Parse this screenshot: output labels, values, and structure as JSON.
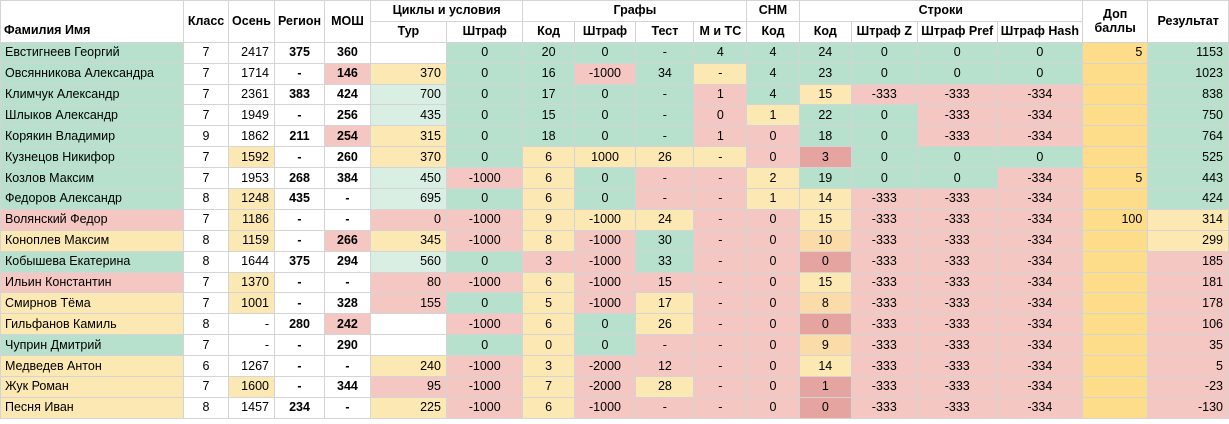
{
  "headers": {
    "name": "Фамилия Имя",
    "class": "Класс",
    "autumn": "Осень",
    "region": "Регион",
    "mosh": "МОШ",
    "group_cycles": "Циклы и условия",
    "group_graphs": "Графы",
    "group_snm": "СНМ",
    "group_strings": "Строки",
    "dop": "Доп баллы",
    "result": "Результат",
    "sub": {
      "cycles_tour": "Тур",
      "cycles_penalty": "Штраф",
      "graphs_code": "Код",
      "graphs_penalty": "Штраф",
      "graphs_test": "Тест",
      "graphs_mts": "М и ТС",
      "snm_code": "Код",
      "strings_code": "Код",
      "strings_pen_z": "Штраф Z",
      "strings_pen_pref": "Штраф Pref",
      "strings_pen_hash": "Штраф Hash"
    }
  },
  "rows": [
    [
      "Евстигнеев Георгий",
      "7",
      "2417",
      "375",
      "360",
      "",
      "0",
      "20",
      "0",
      "-",
      "4",
      "4",
      "24",
      "0",
      "0",
      "0",
      "5",
      "1153"
    ],
    [
      "Овсянникова Александра",
      "7",
      "1714",
      "-",
      "146",
      "370",
      "0",
      "16",
      "-1000",
      "34",
      "-",
      "4",
      "23",
      "0",
      "0",
      "0",
      "",
      "1023"
    ],
    [
      "Климчук Александр",
      "7",
      "2361",
      "383",
      "424",
      "700",
      "0",
      "17",
      "0",
      "-",
      "1",
      "4",
      "15",
      "-333",
      "-333",
      "-334",
      "",
      "838"
    ],
    [
      "Шлыков Александр",
      "7",
      "1949",
      "-",
      "256",
      "435",
      "0",
      "15",
      "0",
      "-",
      "0",
      "1",
      "22",
      "0",
      "-333",
      "-334",
      "",
      "750"
    ],
    [
      "Корякин Владимир",
      "9",
      "1862",
      "211",
      "254",
      "315",
      "0",
      "18",
      "0",
      "-",
      "1",
      "0",
      "18",
      "0",
      "-333",
      "-334",
      "",
      "764"
    ],
    [
      "Кузнецов Никифор",
      "7",
      "1592",
      "-",
      "260",
      "370",
      "0",
      "6",
      "1000",
      "26",
      "-",
      "0",
      "3",
      "0",
      "0",
      "0",
      "",
      "525"
    ],
    [
      "Козлов Максим",
      "7",
      "1953",
      "268",
      "384",
      "450",
      "-1000",
      "6",
      "0",
      "-",
      "-",
      "2",
      "19",
      "0",
      "0",
      "-334",
      "5",
      "443"
    ],
    [
      "Федоров Александр",
      "8",
      "1248",
      "435",
      "-",
      "695",
      "0",
      "6",
      "0",
      "-",
      "-",
      "1",
      "14",
      "-333",
      "-333",
      "-334",
      "",
      "424"
    ],
    [
      "Волянский Федор",
      "7",
      "1186",
      "-",
      "-",
      "0",
      "-1000",
      "9",
      "-1000",
      "24",
      "-",
      "0",
      "15",
      "-333",
      "-333",
      "-334",
      "100",
      "314"
    ],
    [
      "Коноплев Максим",
      "8",
      "1159",
      "-",
      "266",
      "345",
      "-1000",
      "8",
      "-1000",
      "30",
      "-",
      "0",
      "10",
      "-333",
      "-333",
      "-334",
      "",
      "299"
    ],
    [
      "Кобышева Екатерина",
      "8",
      "1644",
      "375",
      "294",
      "560",
      "0",
      "3",
      "-1000",
      "33",
      "-",
      "0",
      "0",
      "-333",
      "-333",
      "-334",
      "",
      "185"
    ],
    [
      "Ильин Константин",
      "7",
      "1370",
      "-",
      "-",
      "80",
      "-1000",
      "6",
      "-1000",
      "15",
      "-",
      "0",
      "15",
      "-333",
      "-333",
      "-334",
      "",
      "181"
    ],
    [
      "Смирнов Тёма",
      "7",
      "1001",
      "-",
      "328",
      "155",
      "0",
      "5",
      "-1000",
      "17",
      "-",
      "0",
      "8",
      "-333",
      "-333",
      "-334",
      "",
      "178"
    ],
    [
      "Гильфанов Камиль",
      "8",
      "-",
      "280",
      "242",
      "",
      "-1000",
      "6",
      "0",
      "26",
      "-",
      "0",
      "0",
      "-333",
      "-333",
      "-334",
      "",
      "106"
    ],
    [
      "Чуприн Дмитрий",
      "7",
      "-",
      "-",
      "290",
      "",
      "0",
      "0",
      "0",
      "-",
      "-",
      "0",
      "9",
      "-333",
      "-333",
      "-334",
      "",
      "35"
    ],
    [
      "Медведев Антон",
      "6",
      "1267",
      "-",
      "-",
      "240",
      "-1000",
      "3",
      "-2000",
      "12",
      "-",
      "0",
      "14",
      "-333",
      "-333",
      "-334",
      "",
      "5"
    ],
    [
      "Жук Роман",
      "7",
      "1600",
      "-",
      "344",
      "95",
      "-1000",
      "7",
      "-2000",
      "28",
      "-",
      "0",
      "1",
      "-333",
      "-333",
      "-334",
      "",
      "-23"
    ],
    [
      "Песня Иван",
      "8",
      "1457",
      "234",
      "-",
      "225",
      "-1000",
      "6",
      "-1000",
      "-",
      "-",
      "0",
      "0",
      "-333",
      "-333",
      "-334",
      "",
      "-130"
    ]
  ],
  "row_colors": [
    [
      "g",
      "w",
      "w",
      "w",
      "w",
      "w",
      "g",
      "g",
      "g",
      "g",
      "g",
      "g",
      "g",
      "g",
      "g",
      "g",
      "dop",
      "g"
    ],
    [
      "g",
      "w",
      "w",
      "w",
      "r",
      "y",
      "g",
      "g",
      "r",
      "g",
      "y",
      "g",
      "g",
      "g",
      "g",
      "g",
      "dop",
      "g"
    ],
    [
      "g",
      "w",
      "w",
      "w",
      "w",
      "lg",
      "g",
      "g",
      "g",
      "g",
      "r",
      "g",
      "y",
      "r",
      "r",
      "r",
      "dop",
      "g"
    ],
    [
      "g",
      "w",
      "w",
      "w",
      "w",
      "lg",
      "g",
      "g",
      "g",
      "g",
      "r",
      "y",
      "g",
      "g",
      "r",
      "r",
      "dop",
      "g"
    ],
    [
      "g",
      "w",
      "w",
      "w",
      "r",
      "y",
      "g",
      "g",
      "g",
      "g",
      "r",
      "r",
      "g",
      "g",
      "r",
      "r",
      "dop",
      "g"
    ],
    [
      "g",
      "w",
      "y",
      "w",
      "w",
      "y",
      "g",
      "y",
      "y",
      "y",
      "y",
      "r",
      "dr",
      "g",
      "g",
      "g",
      "dop",
      "g"
    ],
    [
      "g",
      "w",
      "w",
      "w",
      "w",
      "lg",
      "r",
      "y",
      "g",
      "r",
      "r",
      "y",
      "g",
      "g",
      "g",
      "r",
      "dop",
      "g"
    ],
    [
      "g",
      "w",
      "y",
      "w",
      "w",
      "lg",
      "g",
      "y",
      "g",
      "r",
      "r",
      "y",
      "y",
      "r",
      "r",
      "r",
      "dop",
      "g"
    ],
    [
      "r",
      "w",
      "y",
      "w",
      "w",
      "r",
      "r",
      "y",
      "y",
      "y",
      "r",
      "r",
      "y",
      "r",
      "r",
      "r",
      "dop",
      "y"
    ],
    [
      "y",
      "w",
      "y",
      "w",
      "r",
      "y",
      "r",
      "y",
      "r",
      "g",
      "r",
      "r",
      "o",
      "r",
      "r",
      "r",
      "dop",
      "y"
    ],
    [
      "g",
      "w",
      "w",
      "w",
      "w",
      "lg",
      "g",
      "r",
      "r",
      "g",
      "r",
      "r",
      "dr",
      "r",
      "r",
      "r",
      "dop",
      "r"
    ],
    [
      "r",
      "w",
      "y",
      "w",
      "w",
      "r",
      "r",
      "y",
      "r",
      "r",
      "r",
      "r",
      "y",
      "r",
      "r",
      "r",
      "dop",
      "r"
    ],
    [
      "y",
      "w",
      "y",
      "w",
      "w",
      "r",
      "g",
      "y",
      "r",
      "y",
      "r",
      "r",
      "o",
      "r",
      "r",
      "r",
      "dop",
      "r"
    ],
    [
      "y",
      "w",
      "w",
      "w",
      "r",
      "w",
      "r",
      "y",
      "g",
      "y",
      "r",
      "r",
      "dr",
      "r",
      "r",
      "r",
      "dop",
      "r"
    ],
    [
      "g",
      "w",
      "w",
      "w",
      "w",
      "w",
      "g",
      "y",
      "g",
      "r",
      "r",
      "r",
      "o",
      "r",
      "r",
      "r",
      "dop",
      "r"
    ],
    [
      "y",
      "w",
      "w",
      "w",
      "w",
      "y",
      "r",
      "y",
      "r",
      "r",
      "r",
      "r",
      "y",
      "r",
      "r",
      "r",
      "dop",
      "r"
    ],
    [
      "y",
      "w",
      "y",
      "w",
      "w",
      "r",
      "r",
      "y",
      "r",
      "y",
      "r",
      "r",
      "dr",
      "r",
      "r",
      "r",
      "dop",
      "r"
    ],
    [
      "y",
      "w",
      "w",
      "w",
      "w",
      "y",
      "r",
      "y",
      "r",
      "r",
      "r",
      "r",
      "dr",
      "r",
      "r",
      "r",
      "dop",
      "r"
    ]
  ],
  "bold_cols": [
    3,
    4
  ]
}
